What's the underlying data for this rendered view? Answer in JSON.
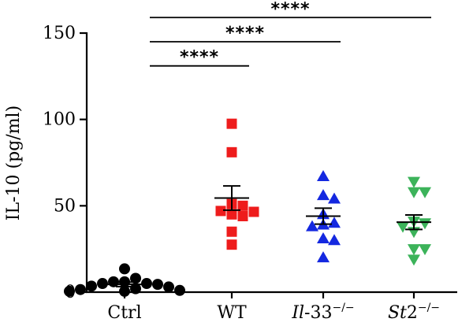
{
  "chart_data": {
    "type": "scatter",
    "ylabel": "IL-10 (pg/ml)",
    "ylim": [
      0,
      150
    ],
    "yticks": [
      0,
      50,
      100,
      150
    ],
    "grid": false,
    "categories": [
      {
        "parts": [
          {
            "text": "Ctrl",
            "italic": false
          }
        ]
      },
      {
        "parts": [
          {
            "text": "WT",
            "italic": false
          }
        ]
      },
      {
        "parts": [
          {
            "text": "Il",
            "italic": true
          },
          {
            "text": "-33",
            "italic": false
          },
          {
            "text": "−/−",
            "italic": false,
            "sup": true
          }
        ]
      },
      {
        "parts": [
          {
            "text": "St",
            "italic": true
          },
          {
            "text": "2",
            "italic": false
          },
          {
            "text": "−/−",
            "italic": false,
            "sup": true
          }
        ]
      }
    ],
    "series": [
      {
        "marker": "circle",
        "color": "#000000",
        "mean": 4.5,
        "sem": 1.3,
        "values": [
          13.5,
          8.0,
          6.0,
          6.0,
          5.0,
          5.0,
          4.5,
          3.5,
          3.0,
          2.0,
          1.5,
          1.0,
          0.5,
          0.5
        ]
      },
      {
        "marker": "square",
        "color": "#ee1c1c",
        "mean": 54.5,
        "sem": 7.0,
        "values": [
          97.5,
          81.0,
          51.0,
          50.0,
          47.0,
          46.5,
          45.0,
          44.0,
          35.0,
          27.5
        ]
      },
      {
        "marker": "triangle-up",
        "color": "#1428e0",
        "mean": 44.0,
        "sem": 4.6,
        "values": [
          67.0,
          56.0,
          54.0,
          45.0,
          40.0,
          39.0,
          38.0,
          30.0,
          31.0,
          20.0
        ]
      },
      {
        "marker": "triangle-down",
        "color": "#3cb35a",
        "mean": 40.5,
        "sem": 4.2,
        "values": [
          64.0,
          58.0,
          58.0,
          41.0,
          40.0,
          38.0,
          35.0,
          25.0,
          25.0,
          19.0
        ]
      }
    ],
    "significance": [
      {
        "from": 0,
        "to": 1,
        "y": 131,
        "label": "****"
      },
      {
        "from": 0,
        "to": 2,
        "y": 145,
        "label": "****"
      },
      {
        "from": 0,
        "to": 3,
        "y": 159,
        "label": "****"
      }
    ]
  }
}
